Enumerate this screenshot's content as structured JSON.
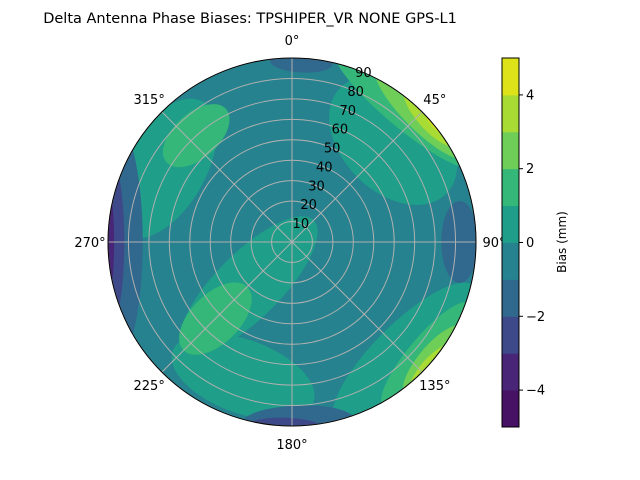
{
  "chart_data": {
    "type": "contour",
    "projection": "polar",
    "title": "Delta Antenna Phase Biases: TPSHIPER_VR     NONE GPS-L1",
    "theta_direction": "clockwise",
    "theta_zero": "north",
    "theta_ticks": [
      "0°",
      "45°",
      "90°",
      "135°",
      "180°",
      "225°",
      "270°",
      "315°"
    ],
    "r_ticks": [
      "10",
      "20",
      "30",
      "40",
      "50",
      "60",
      "70",
      "80",
      "90"
    ],
    "r_range": [
      0,
      90
    ],
    "grid": true,
    "levels": [
      -5,
      -4,
      -3,
      -2,
      -1,
      0,
      1,
      2,
      3,
      4,
      5
    ],
    "colormap": "viridis",
    "level_colors": [
      "#471164",
      "#482576",
      "#3e4989",
      "#31688e",
      "#26828e",
      "#1f9e89",
      "#35b779",
      "#6ece58",
      "#a8db34",
      "#dde318"
    ],
    "colorbar": {
      "label": "Bias (mm)",
      "ticks": [
        "−4",
        "−2",
        "0",
        "2",
        "4"
      ],
      "range": [
        -5,
        5
      ]
    },
    "background_level": -1,
    "regions": [
      {
        "level": 0,
        "az": 225,
        "r": 30,
        "dr": 45,
        "daz": 20
      },
      {
        "level": 0,
        "az": 300,
        "r": 72,
        "dr": 20,
        "daz": 30
      },
      {
        "level": 0,
        "az": 45,
        "r": 70,
        "dr": 25,
        "daz": 30
      },
      {
        "level": 0,
        "az": 135,
        "r": 78,
        "dr": 15,
        "daz": 35
      },
      {
        "level": 0,
        "az": 200,
        "r": 70,
        "dr": 18,
        "daz": 30
      },
      {
        "level": 1,
        "az": 225,
        "r": 53,
        "dr": 22,
        "daz": 13
      },
      {
        "level": 1,
        "az": 318,
        "r": 70,
        "dr": 11,
        "daz": 16
      },
      {
        "level": 1,
        "az": 40,
        "r": 86,
        "dr": 10,
        "daz": 30
      },
      {
        "level": 1,
        "az": 130,
        "r": 86,
        "dr": 9,
        "daz": 22
      },
      {
        "level": 2,
        "az": 45,
        "r": 90,
        "dr": 9,
        "daz": 20
      },
      {
        "level": 2,
        "az": 130,
        "r": 91,
        "dr": 8,
        "daz": 14
      },
      {
        "level": 3,
        "az": 48,
        "r": 92,
        "dr": 7,
        "daz": 12
      },
      {
        "level": 3,
        "az": 132,
        "r": 93,
        "dr": 6,
        "daz": 10
      },
      {
        "level": 4,
        "az": 50,
        "r": 93,
        "dr": 4,
        "daz": 7
      },
      {
        "level": 4,
        "az": 135,
        "r": 94,
        "dr": 3,
        "daz": 5
      },
      {
        "level": -2,
        "az": 270,
        "r": 88,
        "dr": 15,
        "daz": 40
      },
      {
        "level": -2,
        "az": 90,
        "r": 82,
        "dr": 9,
        "daz": 14
      },
      {
        "level": -2,
        "az": 178,
        "r": 88,
        "dr": 8,
        "daz": 18
      },
      {
        "level": -2,
        "az": 3,
        "r": 88,
        "dr": 5,
        "daz": 10
      },
      {
        "level": -3,
        "az": 270,
        "r": 92,
        "dr": 10,
        "daz": 30
      },
      {
        "level": -3,
        "az": 182,
        "r": 91,
        "dr": 5,
        "daz": 12
      },
      {
        "level": -4,
        "az": 270,
        "r": 93,
        "dr": 6,
        "daz": 22
      },
      {
        "level": -5,
        "az": 270,
        "r": 94,
        "dr": 4,
        "daz": 15
      }
    ]
  }
}
